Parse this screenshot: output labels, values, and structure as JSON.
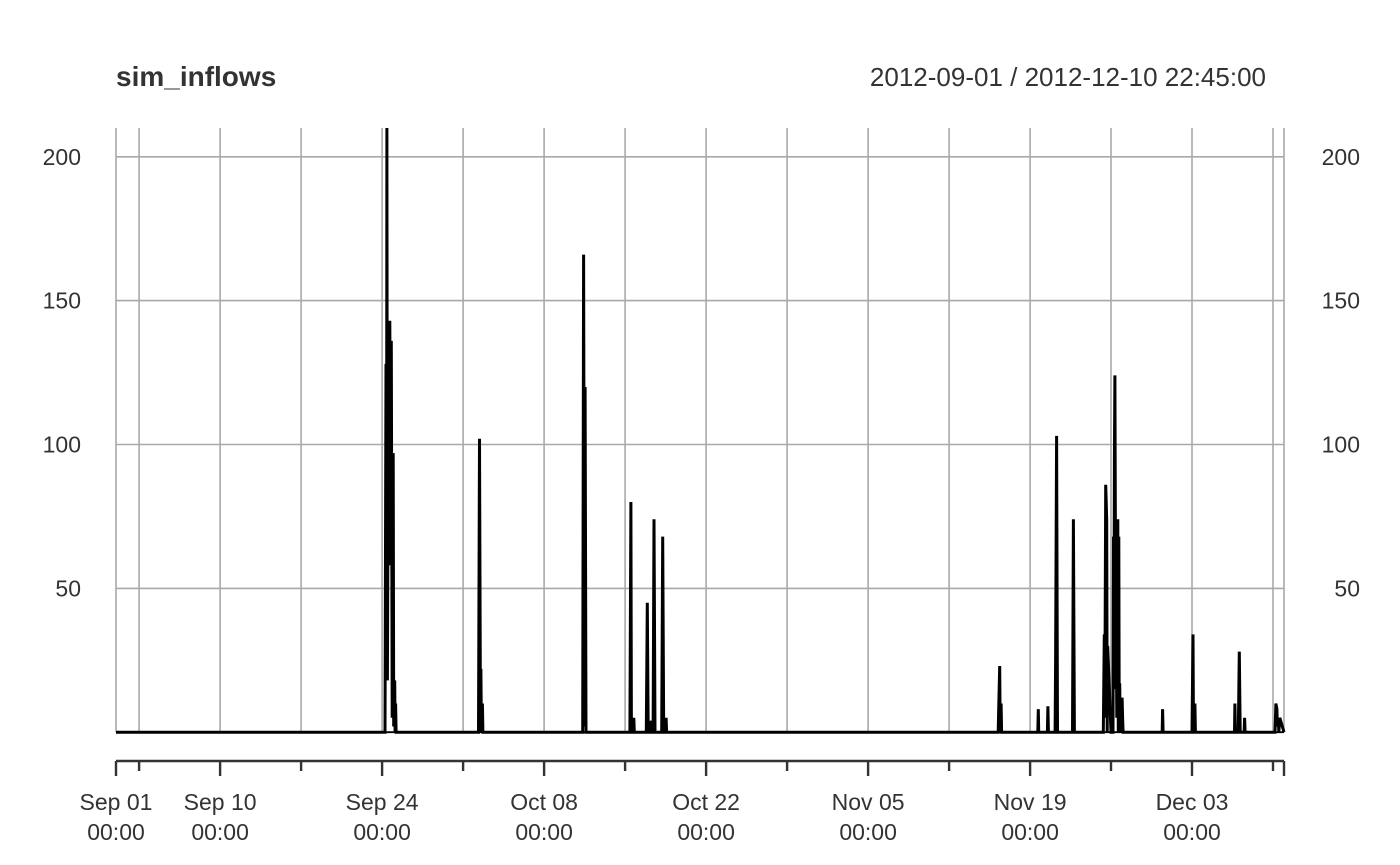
{
  "chart_data": {
    "type": "line",
    "title": "sim_inflows",
    "date_range": "2012-09-01 / 2012-12-10 22:45:00",
    "x_range": [
      "2012-09-01 00:00",
      "2012-12-10 22:45"
    ],
    "ylim": [
      -10,
      210
    ],
    "grid": true,
    "legend": "none",
    "y_ticks": [
      50,
      100,
      150,
      200
    ],
    "x_major_ticks": [
      "2012-09-01",
      "2012-09-10",
      "2012-09-24",
      "2012-10-08",
      "2012-10-22",
      "2012-11-05",
      "2012-11-19",
      "2012-12-03"
    ],
    "x_minor_ticks": [
      "2012-09-03",
      "2012-09-17",
      "2012-10-01",
      "2012-10-15",
      "2012-10-29",
      "2012-11-12",
      "2012-11-26",
      "2012-12-10"
    ],
    "x_tick_labels": [
      {
        "date": "2012-09-01",
        "line1": "Sep 01",
        "line2": "00:00"
      },
      {
        "date": "2012-09-10",
        "line1": "Sep 10",
        "line2": "00:00"
      },
      {
        "date": "2012-09-24",
        "line1": "Sep 24",
        "line2": "00:00"
      },
      {
        "date": "2012-10-08",
        "line1": "Oct 08",
        "line2": "00:00"
      },
      {
        "date": "2012-10-22",
        "line1": "Oct 22",
        "line2": "00:00"
      },
      {
        "date": "2012-11-05",
        "line1": "Nov 05",
        "line2": "00:00"
      },
      {
        "date": "2012-11-19",
        "line1": "Nov 19",
        "line2": "00:00"
      },
      {
        "date": "2012-12-03",
        "line1": "Dec 03",
        "line2": "00:00"
      }
    ],
    "colors": {
      "series": "#000000",
      "grid": "#a9a9a9",
      "text": "#333333"
    },
    "series": [
      {
        "points": [
          [
            "2012-09-01 00:00",
            0
          ],
          [
            "2012-09-24 06:00",
            0
          ],
          [
            "2012-09-24 08:00",
            128
          ],
          [
            "2012-09-24 09:00",
            20
          ],
          [
            "2012-09-24 10:00",
            210
          ],
          [
            "2012-09-24 11:00",
            18
          ],
          [
            "2012-09-24 13:00",
            115
          ],
          [
            "2012-09-24 14:00",
            60
          ],
          [
            "2012-09-24 16:00",
            143
          ],
          [
            "2012-09-24 18:00",
            58
          ],
          [
            "2012-09-24 19:00",
            136
          ],
          [
            "2012-09-24 21:00",
            5
          ],
          [
            "2012-09-24 23:00",
            97
          ],
          [
            "2012-09-25 00:00",
            2
          ],
          [
            "2012-09-25 02:00",
            18
          ],
          [
            "2012-09-25 03:00",
            0
          ],
          [
            "2012-09-25 04:00",
            10
          ],
          [
            "2012-09-25 05:00",
            0
          ],
          [
            "2012-10-02 08:00",
            0
          ],
          [
            "2012-10-02 10:00",
            102
          ],
          [
            "2012-10-02 12:00",
            0
          ],
          [
            "2012-10-02 13:00",
            22
          ],
          [
            "2012-10-02 14:00",
            0
          ],
          [
            "2012-10-02 16:00",
            10
          ],
          [
            "2012-10-02 17:00",
            0
          ],
          [
            "2012-10-11 08:00",
            0
          ],
          [
            "2012-10-11 10:00",
            166
          ],
          [
            "2012-10-11 12:00",
            2
          ],
          [
            "2012-10-11 13:00",
            120
          ],
          [
            "2012-10-11 15:00",
            0
          ],
          [
            "2012-10-15 10:00",
            0
          ],
          [
            "2012-10-15 12:00",
            80
          ],
          [
            "2012-10-15 13:00",
            0
          ],
          [
            "2012-10-15 17:00",
            0
          ],
          [
            "2012-10-15 18:00",
            5
          ],
          [
            "2012-10-15 19:00",
            0
          ],
          [
            "2012-10-16 20:00",
            0
          ],
          [
            "2012-10-16 22:00",
            45
          ],
          [
            "2012-10-17 00:00",
            0
          ],
          [
            "2012-10-17 04:00",
            0
          ],
          [
            "2012-10-17 05:00",
            4
          ],
          [
            "2012-10-17 06:00",
            0
          ],
          [
            "2012-10-17 10:00",
            0
          ],
          [
            "2012-10-17 12:00",
            74
          ],
          [
            "2012-10-17 14:00",
            0
          ],
          [
            "2012-10-18 04:00",
            0
          ],
          [
            "2012-10-18 06:00",
            68
          ],
          [
            "2012-10-18 08:00",
            0
          ],
          [
            "2012-10-18 12:00",
            0
          ],
          [
            "2012-10-18 13:00",
            5
          ],
          [
            "2012-10-18 14:00",
            0
          ],
          [
            "2012-11-16 06:00",
            0
          ],
          [
            "2012-11-16 07:00",
            8
          ],
          [
            "2012-11-16 09:00",
            23
          ],
          [
            "2012-11-16 10:00",
            0
          ],
          [
            "2012-11-16 12:00",
            10
          ],
          [
            "2012-11-16 13:00",
            0
          ],
          [
            "2012-11-19 16:00",
            0
          ],
          [
            "2012-11-19 17:00",
            8
          ],
          [
            "2012-11-19 18:00",
            0
          ],
          [
            "2012-11-20 12:00",
            0
          ],
          [
            "2012-11-20 13:00",
            9
          ],
          [
            "2012-11-20 14:00",
            0
          ],
          [
            "2012-11-21 04:00",
            0
          ],
          [
            "2012-11-21 05:00",
            25
          ],
          [
            "2012-11-21 07:00",
            103
          ],
          [
            "2012-11-21 09:00",
            0
          ],
          [
            "2012-11-22 16:00",
            0
          ],
          [
            "2012-11-22 18:00",
            74
          ],
          [
            "2012-11-22 20:00",
            0
          ],
          [
            "2012-11-25 08:00",
            0
          ],
          [
            "2012-11-25 10:00",
            34
          ],
          [
            "2012-11-25 11:00",
            5
          ],
          [
            "2012-11-25 13:00",
            86
          ],
          [
            "2012-11-25 15:00",
            74
          ],
          [
            "2012-11-25 16:00",
            0
          ],
          [
            "2012-11-25 17:00",
            30
          ],
          [
            "2012-11-26 00:00",
            0
          ],
          [
            "2012-11-26 04:00",
            0
          ],
          [
            "2012-11-26 05:00",
            68
          ],
          [
            "2012-11-26 06:00",
            30
          ],
          [
            "2012-11-26 07:00",
            95
          ],
          [
            "2012-11-26 08:00",
            124
          ],
          [
            "2012-11-26 10:00",
            15
          ],
          [
            "2012-11-26 11:00",
            28
          ],
          [
            "2012-11-26 12:00",
            5
          ],
          [
            "2012-11-26 14:00",
            74
          ],
          [
            "2012-11-26 15:00",
            0
          ],
          [
            "2012-11-26 16:00",
            68
          ],
          [
            "2012-11-26 17:00",
            5
          ],
          [
            "2012-11-26 18:00",
            17
          ],
          [
            "2012-11-26 19:00",
            0
          ],
          [
            "2012-11-26 20:00",
            5
          ],
          [
            "2012-11-26 21:00",
            0
          ],
          [
            "2012-11-26 23:00",
            12
          ],
          [
            "2012-11-27 00:00",
            5
          ],
          [
            "2012-11-27 01:00",
            0
          ],
          [
            "2012-11-30 10:00",
            0
          ],
          [
            "2012-11-30 11:00",
            8
          ],
          [
            "2012-11-30 12:00",
            0
          ],
          [
            "2012-12-03 00:00",
            0
          ],
          [
            "2012-12-03 02:00",
            34
          ],
          [
            "2012-12-03 03:00",
            0
          ],
          [
            "2012-12-03 05:00",
            0
          ],
          [
            "2012-12-03 06:00",
            10
          ],
          [
            "2012-12-03 07:00",
            0
          ],
          [
            "2012-12-06 16:00",
            0
          ],
          [
            "2012-12-06 17:00",
            10
          ],
          [
            "2012-12-06 18:00",
            0
          ],
          [
            "2012-12-07 00:00",
            0
          ],
          [
            "2012-12-07 02:00",
            28
          ],
          [
            "2012-12-07 04:00",
            0
          ],
          [
            "2012-12-07 12:00",
            0
          ],
          [
            "2012-12-07 13:00",
            5
          ],
          [
            "2012-12-07 14:00",
            0
          ],
          [
            "2012-12-10 04:00",
            0
          ],
          [
            "2012-12-10 06:00",
            10
          ],
          [
            "2012-12-10 08:00",
            8
          ],
          [
            "2012-12-10 09:00",
            2
          ],
          [
            "2012-12-10 11:00",
            5
          ],
          [
            "2012-12-10 12:00",
            0
          ],
          [
            "2012-12-10 14:00",
            5
          ],
          [
            "2012-12-10 22:45",
            0
          ]
        ]
      }
    ]
  }
}
